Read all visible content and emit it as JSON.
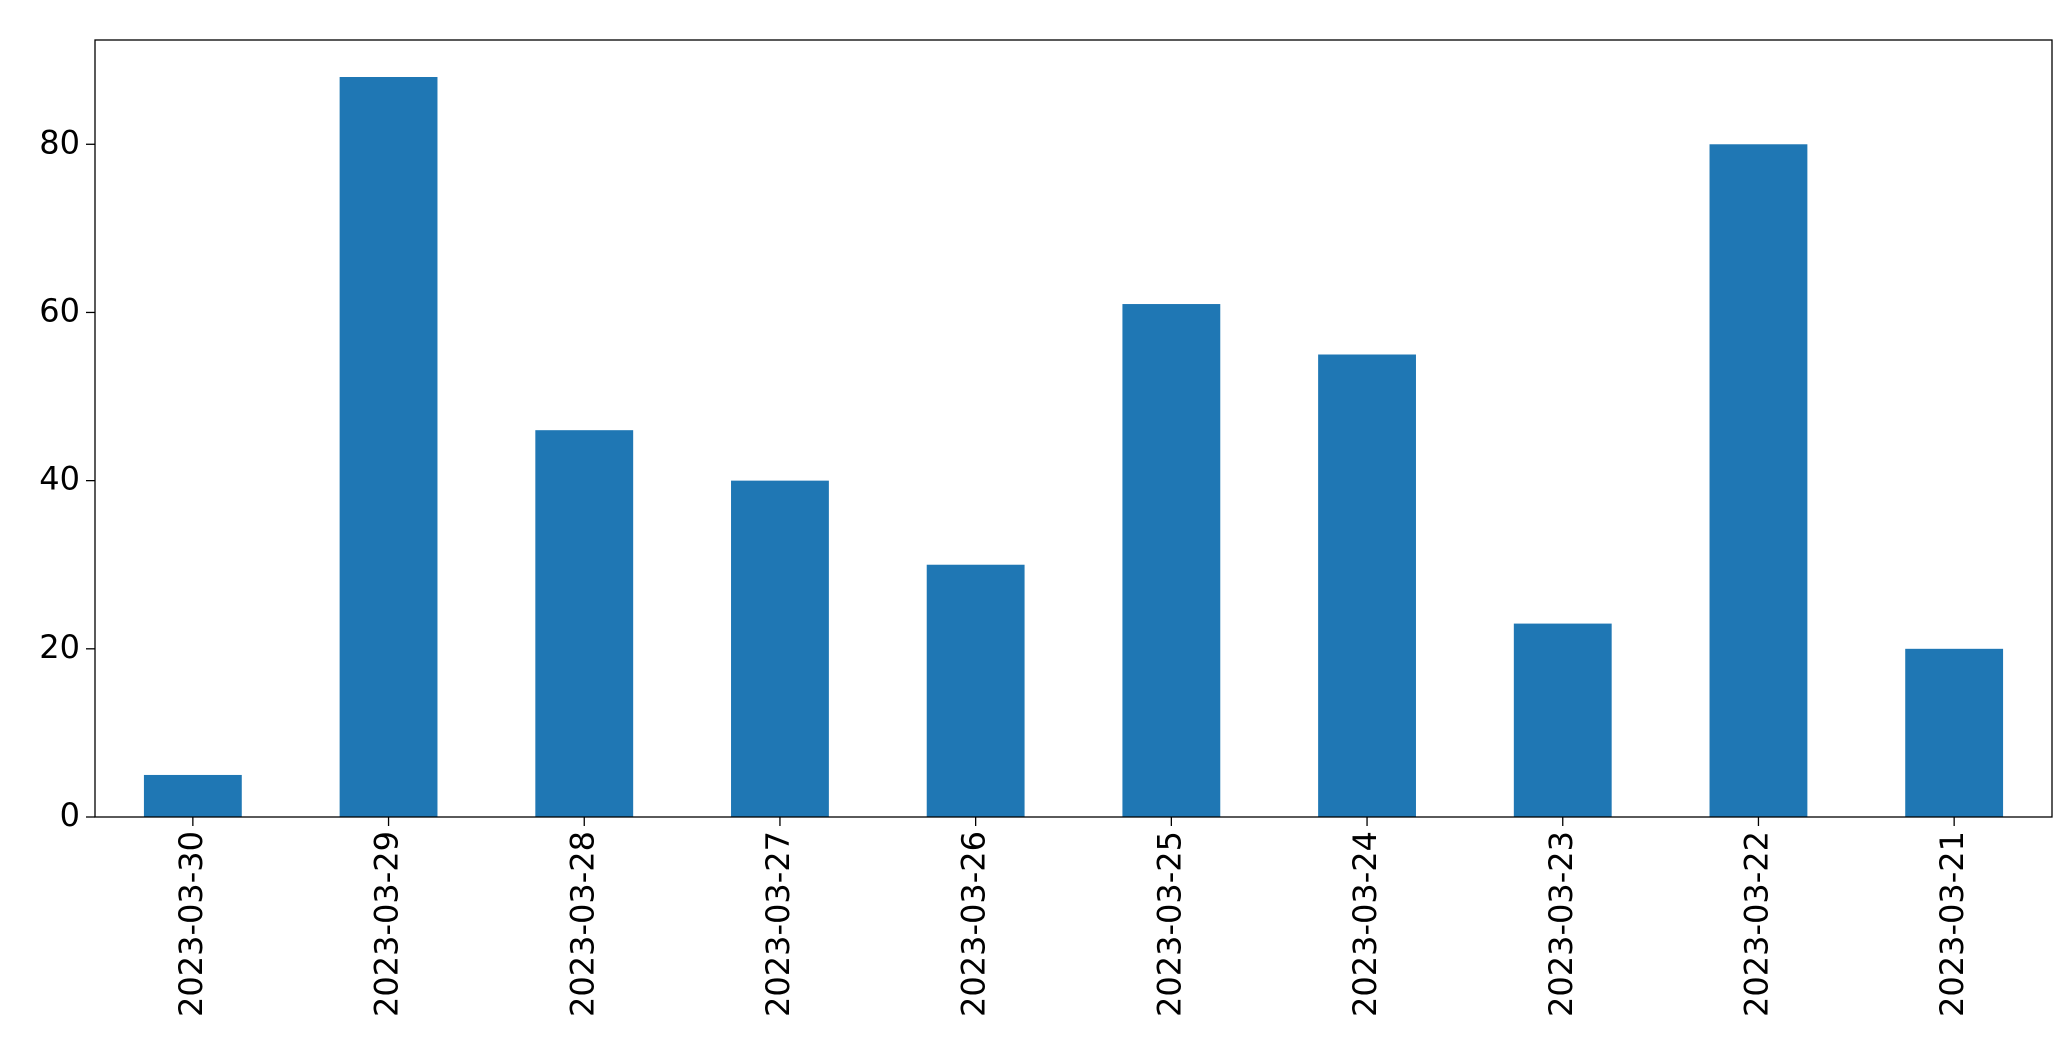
{
  "chart_data": {
    "type": "bar",
    "categories": [
      "2023-03-30",
      "2023-03-29",
      "2023-03-28",
      "2023-03-27",
      "2023-03-26",
      "2023-03-25",
      "2023-03-24",
      "2023-03-23",
      "2023-03-22",
      "2023-03-21"
    ],
    "values": [
      5,
      88,
      46,
      40,
      30,
      61,
      55,
      23,
      80,
      20
    ],
    "color": "#1f77b4",
    "ylim": [
      0,
      92.4
    ],
    "yticks": [
      0,
      20,
      40,
      60,
      80
    ],
    "grid": false
  }
}
